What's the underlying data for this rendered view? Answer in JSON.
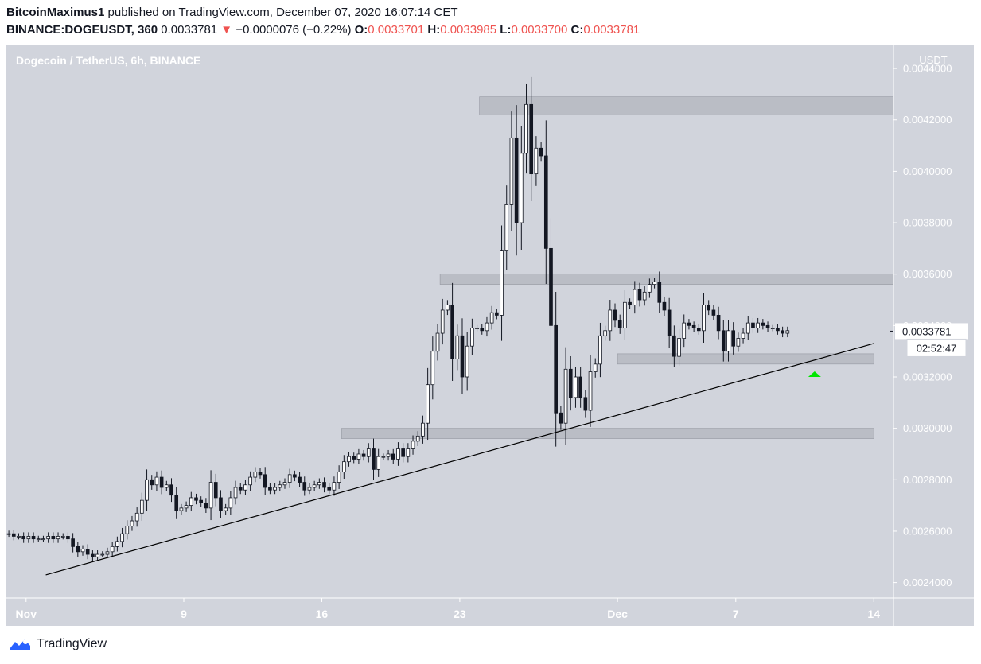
{
  "header": {
    "author": "BitcoinMaximus1",
    "published_text": "published on TradingView.com, December 07, 2020 16:07:14 CET",
    "symbol": "BINANCE:DOGEUSDT, 360",
    "last": "0.0033781",
    "change": "−0.0000076 (−0.22%)",
    "o_label": "O:",
    "o": "0.0033701",
    "h_label": "H:",
    "h": "0.0033985",
    "l_label": "L:",
    "l": "0.0033700",
    "c_label": "C:",
    "c": "0.0033781",
    "down_arrow": "▼"
  },
  "footer": {
    "brand": "TradingView",
    "logo_icon": "tradingview-logo-icon"
  },
  "colors": {
    "plot_bg": "#d1d4dc",
    "panel_bg": "#ffffff",
    "up_body": "#ffffff",
    "down_body": "#131722",
    "wick": "#131722",
    "zone": "#b2b5be",
    "trendline": "#000000",
    "signal": "#00e600",
    "red": "#ef5350"
  },
  "chart_data": {
    "type": "candlestick",
    "title": "Dogecoin / TetherUS, 6h, BINANCE",
    "ylabel": "USDT",
    "ylim": [
      0.00234,
      0.00449
    ],
    "y_ticks": [
      "0.0024000",
      "0.0026000",
      "0.0028000",
      "0.0030000",
      "0.0032000",
      "0.0034000",
      "0.0036000",
      "0.0038000",
      "0.0040000",
      "0.0042000",
      "0.0044000"
    ],
    "x_tick_labels": [
      {
        "label": "Nov",
        "date": "2020-11-01"
      },
      {
        "label": "9",
        "date": "2020-11-09"
      },
      {
        "label": "16",
        "date": "2020-11-16"
      },
      {
        "label": "23",
        "date": "2020-11-23"
      },
      {
        "label": "Dec",
        "date": "2020-12-01"
      },
      {
        "label": "7",
        "date": "2020-12-07"
      },
      {
        "label": "14",
        "date": "2020-12-14"
      }
    ],
    "x_range": [
      "2020-10-31",
      "2020-12-15"
    ],
    "price_label": "0.0033781",
    "countdown_label": "02:52:47",
    "candle_interval_hours": 6,
    "first_candle": "2020-10-31 00:00",
    "closes": [
      0.00259,
      0.00258,
      0.00258,
      0.00257,
      0.00258,
      0.00257,
      0.00257,
      0.00257,
      0.00258,
      0.00257,
      0.00258,
      0.00258,
      0.00257,
      0.00254,
      0.00252,
      0.00253,
      0.00251,
      0.0025,
      0.00251,
      0.00251,
      0.00252,
      0.00254,
      0.00256,
      0.00259,
      0.00262,
      0.00264,
      0.00267,
      0.00272,
      0.0028,
      0.00278,
      0.00281,
      0.00277,
      0.00278,
      0.00274,
      0.00268,
      0.00269,
      0.0027,
      0.00273,
      0.00272,
      0.00271,
      0.00269,
      0.00279,
      0.00273,
      0.00268,
      0.00269,
      0.00273,
      0.00277,
      0.00276,
      0.00278,
      0.00281,
      0.00283,
      0.00282,
      0.00277,
      0.00276,
      0.00277,
      0.00278,
      0.00279,
      0.00282,
      0.00281,
      0.00279,
      0.00276,
      0.00277,
      0.00278,
      0.00279,
      0.00277,
      0.00276,
      0.00279,
      0.00283,
      0.00287,
      0.00289,
      0.00288,
      0.0029,
      0.00289,
      0.00292,
      0.00284,
      0.00289,
      0.00289,
      0.0029,
      0.00288,
      0.00292,
      0.00289,
      0.00292,
      0.00295,
      0.00297,
      0.00302,
      0.00317,
      0.0033,
      0.00337,
      0.00346,
      0.00348,
      0.00327,
      0.00336,
      0.0032,
      0.00332,
      0.00339,
      0.00339,
      0.00338,
      0.00341,
      0.00345,
      0.00344,
      0.00369,
      0.00387,
      0.00413,
      0.0038,
      0.00407,
      0.00426,
      0.00399,
      0.00409,
      0.00406,
      0.0037,
      0.0034,
      0.00306,
      0.00302,
      0.00323,
      0.00312,
      0.0032,
      0.00312,
      0.00307,
      0.00322,
      0.00325,
      0.00336,
      0.00338,
      0.00346,
      0.00342,
      0.00339,
      0.00349,
      0.00348,
      0.00354,
      0.0035,
      0.00353,
      0.00356,
      0.00357,
      0.00349,
      0.00346,
      0.00336,
      0.00328,
      0.00335,
      0.00341,
      0.0034,
      0.00339,
      0.00338,
      0.00348,
      0.00346,
      0.00344,
      0.00338,
      0.0033,
      0.00338,
      0.00332,
      0.00335,
      0.00337,
      0.00341,
      0.00339,
      0.00341,
      0.0034,
      0.00339,
      0.00339,
      0.00338,
      0.00337,
      0.00338
    ]
  },
  "zones": [
    {
      "from": "2020-11-24",
      "to": "2020-12-15",
      "y1": 0.00422,
      "y2": 0.00429
    },
    {
      "from": "2020-11-22",
      "to": "2020-12-15",
      "y1": 0.00356,
      "y2": 0.0036
    },
    {
      "from": "2020-12-01",
      "to": "2020-12-14",
      "y1": 0.00325,
      "y2": 0.00329
    },
    {
      "from": "2020-11-17",
      "to": "2020-12-14",
      "y1": 0.00296,
      "y2": 0.003
    }
  ],
  "trendline": {
    "from_date": "2020-11-02",
    "from_price": 0.00243,
    "to_date": "2020-12-14",
    "to_price": 0.00333
  },
  "signal_marker": {
    "date": "2020-12-11",
    "price": 0.0032,
    "icon": "up-triangle-icon"
  }
}
